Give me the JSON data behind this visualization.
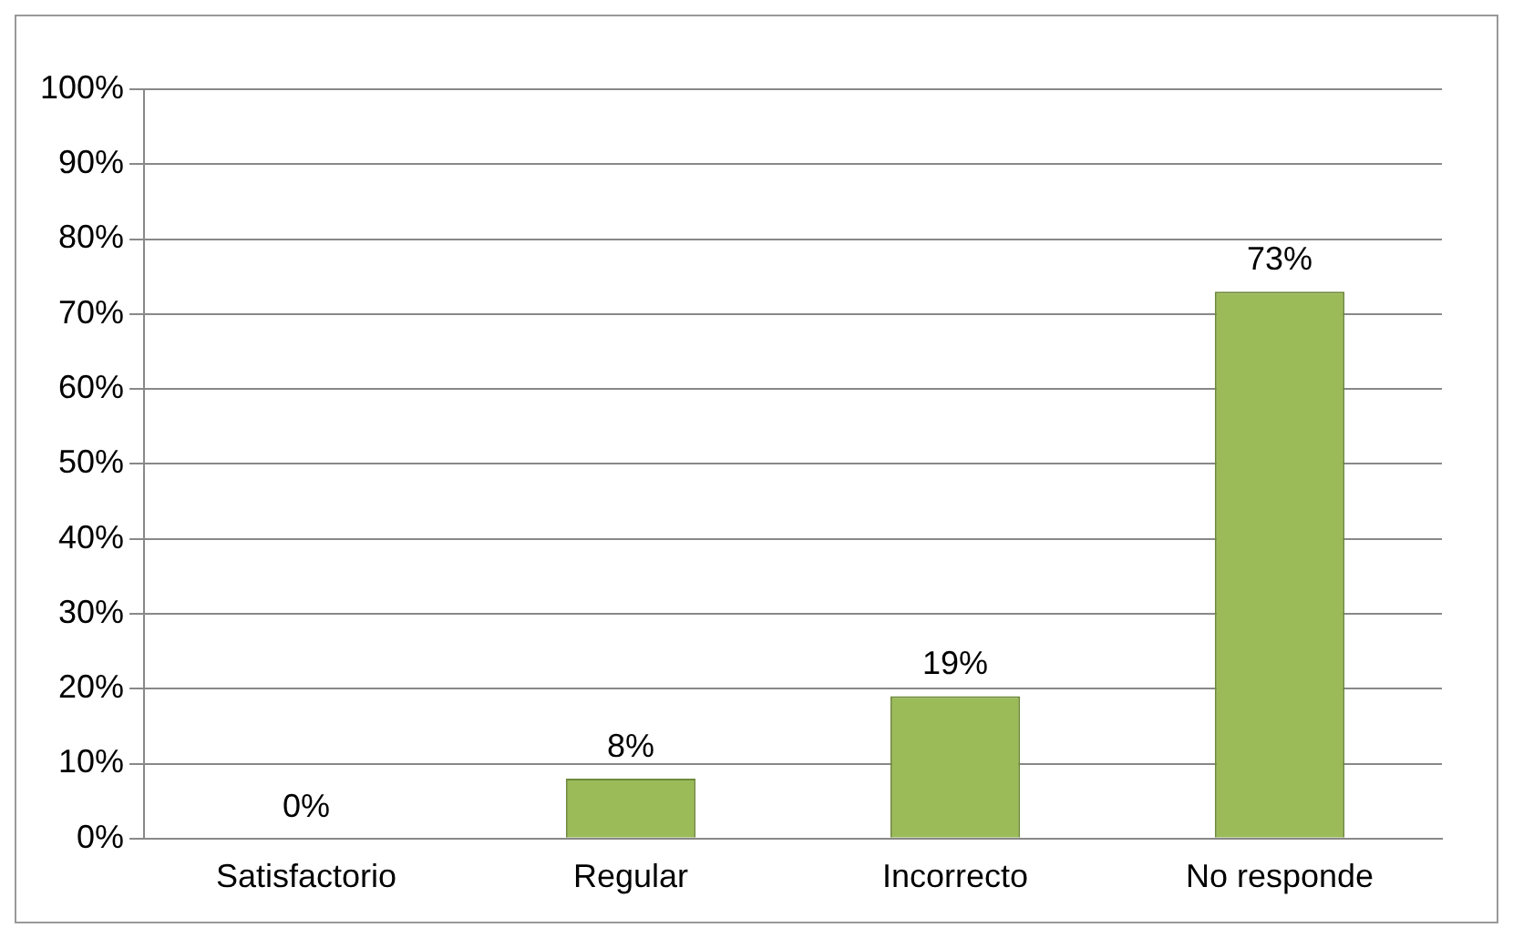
{
  "chart_data": {
    "type": "bar",
    "categories": [
      "Satisfactorio",
      "Regular",
      "Incorrecto",
      "No responde"
    ],
    "values": [
      0,
      8,
      19,
      73
    ],
    "color": "#9bbb59",
    "value_labels": [
      "0%",
      "8%",
      "19%",
      "73%"
    ],
    "ylim": [
      0,
      100
    ],
    "yticks": [
      {
        "value": 0,
        "label": "0%"
      },
      {
        "value": 10,
        "label": "10%"
      },
      {
        "value": 20,
        "label": "20%"
      },
      {
        "value": 30,
        "label": "30%"
      },
      {
        "value": 40,
        "label": "40%"
      },
      {
        "value": 50,
        "label": "50%"
      },
      {
        "value": 60,
        "label": "60%"
      },
      {
        "value": 70,
        "label": "70%"
      },
      {
        "value": 80,
        "label": "80%"
      },
      {
        "value": 90,
        "label": "90%"
      },
      {
        "value": 100,
        "label": "100%"
      }
    ],
    "grid": "y",
    "legend": false
  }
}
